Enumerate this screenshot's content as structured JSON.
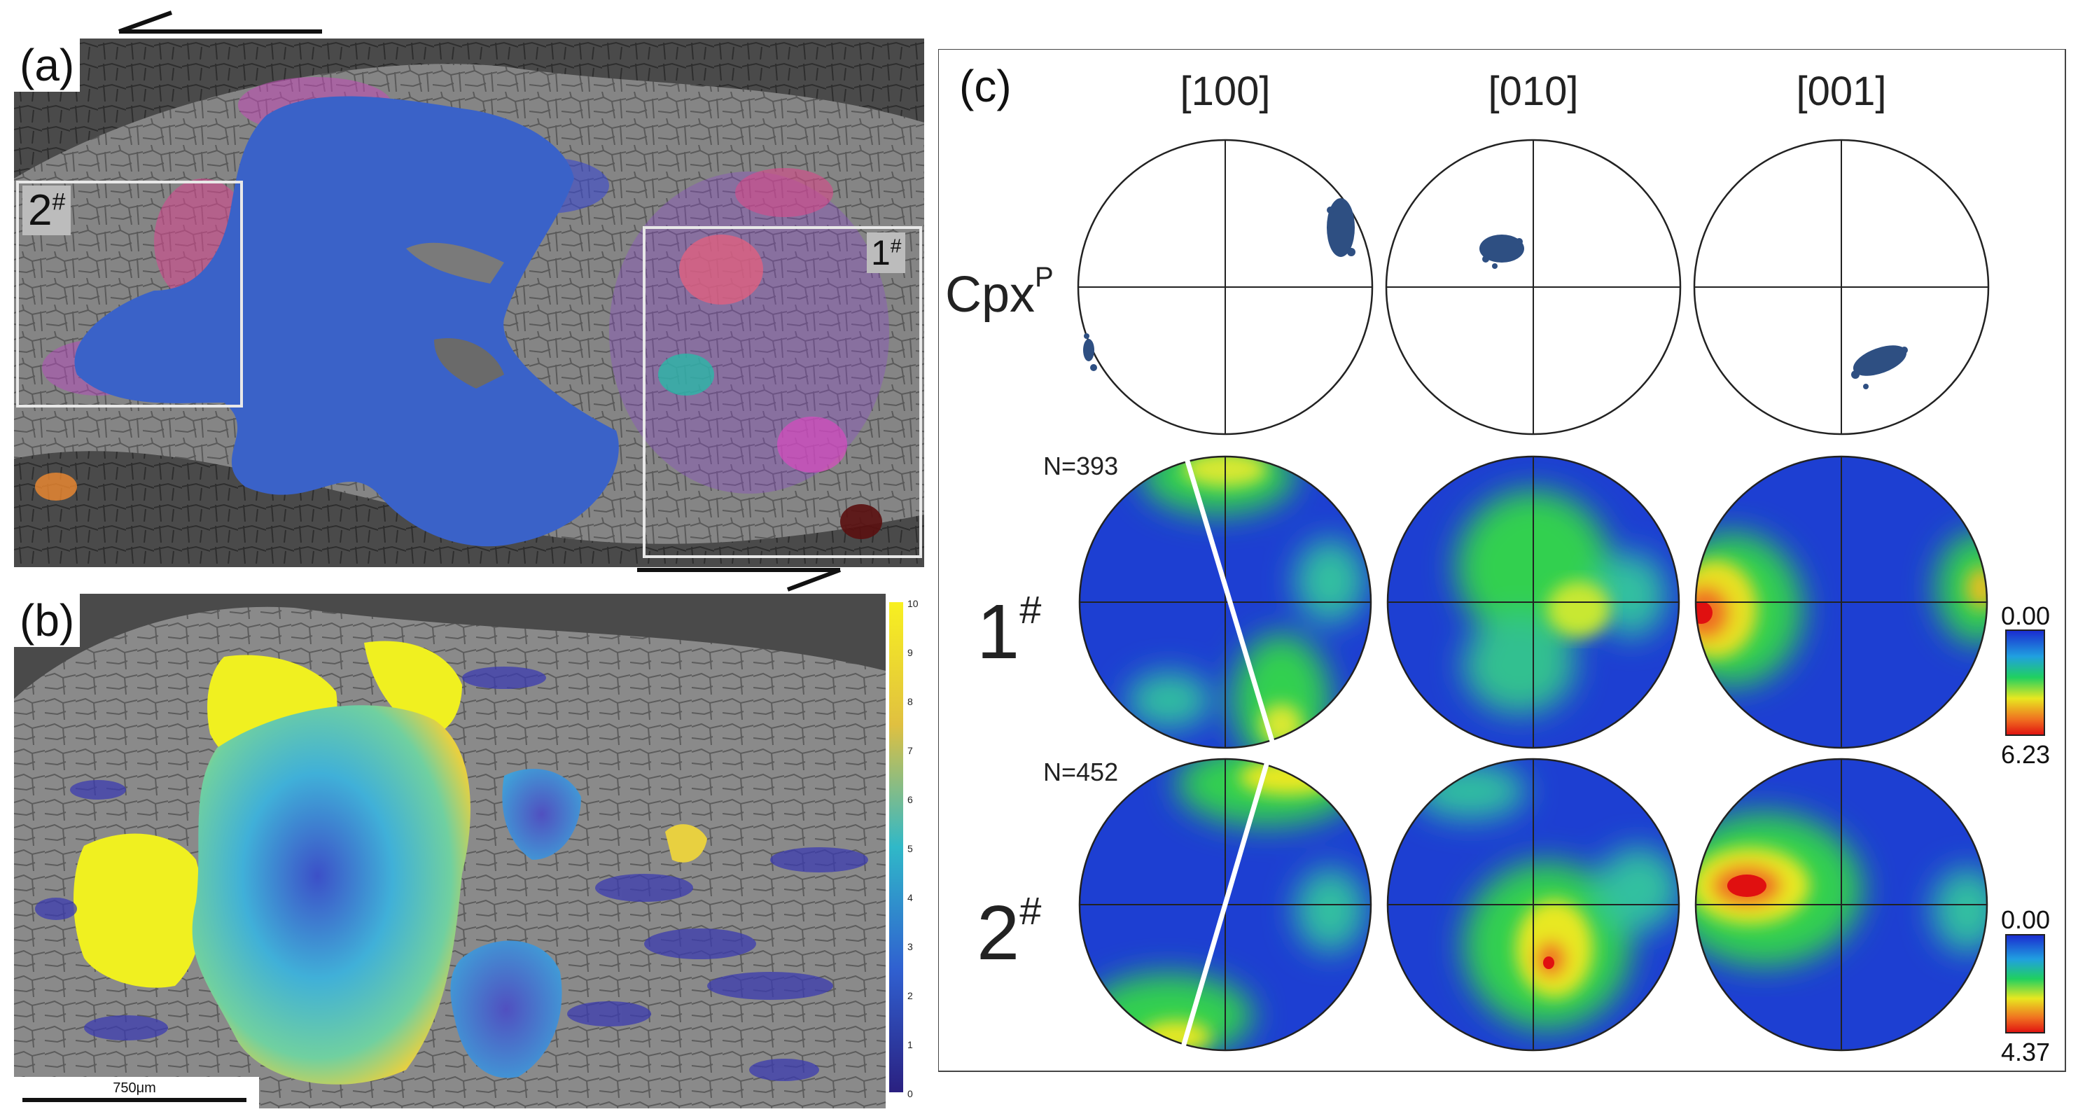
{
  "panel_a": {
    "label": "(a)",
    "region_1": "1",
    "region_1_sup": "#",
    "region_2": "2",
    "region_2_sup": "#"
  },
  "panel_b": {
    "label": "(b)",
    "colorbar_ticks": [
      "10",
      "9",
      "8",
      "7",
      "6",
      "5",
      "4",
      "3",
      "2",
      "1",
      "0"
    ],
    "scale_bar": "750μm"
  },
  "panel_c": {
    "label": "(c)",
    "columns": [
      "[100]",
      "[010]",
      "[001]"
    ],
    "row_labels": {
      "cpx": "Cpx",
      "cpx_sup": "P",
      "r1": "1",
      "r1_sup": "#",
      "r2": "2",
      "r2_sup": "#"
    },
    "n_values": {
      "r1": "N=393",
      "r2": "N=452"
    },
    "legend1": {
      "min": "0.00",
      "max": "6.23"
    },
    "legend2": {
      "min": "0.00",
      "max": "4.37"
    }
  },
  "colors": {
    "ebsd_blue": "#3a62c8",
    "grain_gray": "#7a7a7a",
    "pf_low": "#1c3fd0",
    "pf_mid": "#2fd04a",
    "pf_high": "#e0e020",
    "pf_peak": "#e21a0a"
  }
}
